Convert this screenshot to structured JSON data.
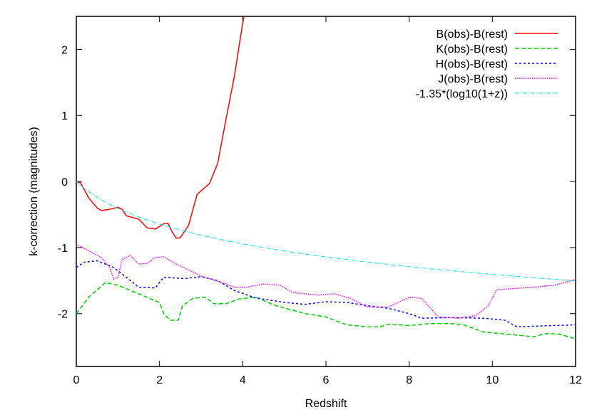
{
  "chart_data": {
    "type": "line",
    "title": "",
    "xlabel": "Redshift",
    "ylabel": "k-correction (magnitudes)",
    "xlim": [
      0,
      12
    ],
    "ylim": [
      -2.8,
      2.5
    ],
    "xticks": [
      0,
      2,
      4,
      6,
      8,
      10,
      12
    ],
    "yticks": [
      -2,
      -1,
      0,
      1,
      2
    ],
    "grid": false,
    "legend_position": "top-right",
    "series": [
      {
        "name": "B(obs)-B(rest)",
        "color": "#ff0000",
        "dash": "",
        "points": [
          [
            0,
            0
          ],
          [
            0.1,
            -0.02
          ],
          [
            0.3,
            -0.25
          ],
          [
            0.5,
            -0.4
          ],
          [
            0.6,
            -0.44
          ],
          [
            0.8,
            -0.42
          ],
          [
            1.0,
            -0.39
          ],
          [
            1.1,
            -0.42
          ],
          [
            1.2,
            -0.52
          ],
          [
            1.5,
            -0.57
          ],
          [
            1.7,
            -0.7
          ],
          [
            1.9,
            -0.72
          ],
          [
            2.1,
            -0.64
          ],
          [
            2.2,
            -0.63
          ],
          [
            2.3,
            -0.76
          ],
          [
            2.4,
            -0.86
          ],
          [
            2.5,
            -0.85
          ],
          [
            2.7,
            -0.66
          ],
          [
            2.9,
            -0.2
          ],
          [
            3.0,
            -0.14
          ],
          [
            3.2,
            -0.03
          ],
          [
            3.4,
            0.28
          ],
          [
            3.6,
            0.95
          ],
          [
            3.8,
            1.6
          ],
          [
            4.0,
            2.4
          ],
          [
            4.03,
            2.5
          ]
        ]
      },
      {
        "name": "K(obs)-B(rest)",
        "color": "#00cc00",
        "dash": "6,3",
        "points": [
          [
            0,
            -2.0
          ],
          [
            0.3,
            -1.75
          ],
          [
            0.7,
            -1.53
          ],
          [
            1,
            -1.57
          ],
          [
            1.5,
            -1.7
          ],
          [
            2,
            -1.83
          ],
          [
            2.1,
            -2.0
          ],
          [
            2.25,
            -2.1
          ],
          [
            2.45,
            -2.1
          ],
          [
            2.55,
            -1.88
          ],
          [
            2.8,
            -1.77
          ],
          [
            3.1,
            -1.75
          ],
          [
            3.3,
            -1.85
          ],
          [
            3.6,
            -1.85
          ],
          [
            3.9,
            -1.78
          ],
          [
            4.3,
            -1.75
          ],
          [
            4.8,
            -1.88
          ],
          [
            5.5,
            -2.0
          ],
          [
            6,
            -2.05
          ],
          [
            6.5,
            -2.17
          ],
          [
            7,
            -2.2
          ],
          [
            7.3,
            -2.2
          ],
          [
            7.5,
            -2.16
          ],
          [
            8,
            -2.18
          ],
          [
            8.5,
            -2.15
          ],
          [
            9,
            -2.15
          ],
          [
            9.3,
            -2.17
          ],
          [
            9.8,
            -2.28
          ],
          [
            10.5,
            -2.32
          ],
          [
            11,
            -2.35
          ],
          [
            11.3,
            -2.3
          ],
          [
            11.6,
            -2.31
          ],
          [
            12,
            -2.38
          ]
        ]
      },
      {
        "name": "H(obs)-B(rest)",
        "color": "#0000ff",
        "dash": "3,3",
        "points": [
          [
            0,
            -1.3
          ],
          [
            0.2,
            -1.22
          ],
          [
            0.5,
            -1.2
          ],
          [
            0.9,
            -1.3
          ],
          [
            1.2,
            -1.45
          ],
          [
            1.5,
            -1.6
          ],
          [
            1.9,
            -1.61
          ],
          [
            2.1,
            -1.45
          ],
          [
            2.6,
            -1.47
          ],
          [
            3,
            -1.44
          ],
          [
            3.4,
            -1.5
          ],
          [
            3.8,
            -1.65
          ],
          [
            4.3,
            -1.76
          ],
          [
            5,
            -1.83
          ],
          [
            5.5,
            -1.86
          ],
          [
            6,
            -1.82
          ],
          [
            6.5,
            -1.83
          ],
          [
            7,
            -1.88
          ],
          [
            7.5,
            -1.92
          ],
          [
            8,
            -2.0
          ],
          [
            8.3,
            -2.07
          ],
          [
            9,
            -2.06
          ],
          [
            9.8,
            -2.07
          ],
          [
            10.3,
            -2.1
          ],
          [
            10.6,
            -2.2
          ],
          [
            11,
            -2.19
          ],
          [
            12,
            -2.17
          ]
        ]
      },
      {
        "name": "J(obs)-B(rest)",
        "color": "#ff00ff",
        "dash": "1.5,1.5",
        "points": [
          [
            0,
            -0.95
          ],
          [
            0.3,
            -1.05
          ],
          [
            0.6,
            -1.15
          ],
          [
            0.8,
            -1.3
          ],
          [
            0.9,
            -1.48
          ],
          [
            1.0,
            -1.45
          ],
          [
            1.1,
            -1.18
          ],
          [
            1.3,
            -1.12
          ],
          [
            1.5,
            -1.25
          ],
          [
            1.7,
            -1.24
          ],
          [
            1.9,
            -1.15
          ],
          [
            2.1,
            -1.14
          ],
          [
            2.4,
            -1.25
          ],
          [
            3,
            -1.43
          ],
          [
            3.6,
            -1.55
          ],
          [
            3.8,
            -1.6
          ],
          [
            4.1,
            -1.6
          ],
          [
            4.5,
            -1.55
          ],
          [
            4.9,
            -1.57
          ],
          [
            5.2,
            -1.68
          ],
          [
            5.8,
            -1.72
          ],
          [
            6.2,
            -1.7
          ],
          [
            6.6,
            -1.77
          ],
          [
            7,
            -1.9
          ],
          [
            7.5,
            -1.9
          ],
          [
            8,
            -1.75
          ],
          [
            8.3,
            -1.77
          ],
          [
            8.7,
            -2.05
          ],
          [
            9.2,
            -2.07
          ],
          [
            9.6,
            -2.03
          ],
          [
            9.9,
            -1.88
          ],
          [
            10.1,
            -1.64
          ],
          [
            10.5,
            -1.62
          ],
          [
            11,
            -1.6
          ],
          [
            11.5,
            -1.57
          ],
          [
            12,
            -1.48
          ]
        ]
      },
      {
        "name": "-1.35*(log10(1+z))",
        "color": "#00dddd",
        "dash": "6,2,1,2",
        "function": "-1.35*log10(1+z)"
      }
    ]
  }
}
